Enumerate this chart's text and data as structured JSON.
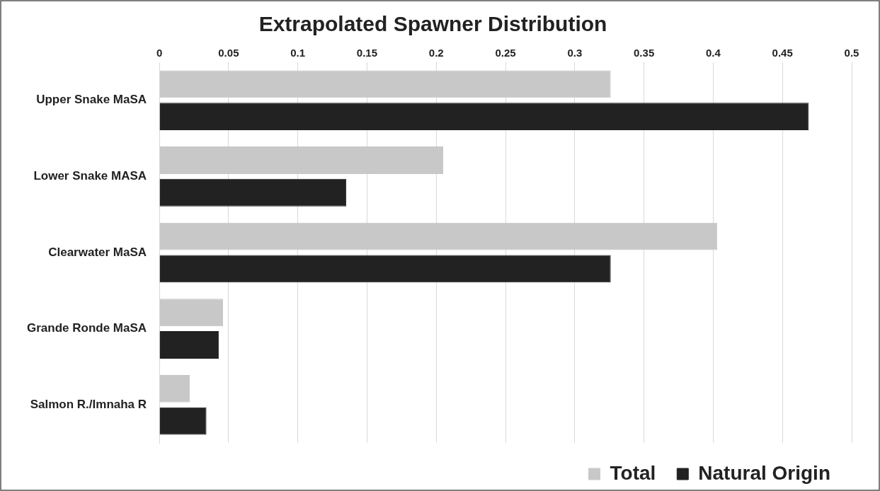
{
  "chart_data": {
    "type": "bar",
    "orientation": "horizontal",
    "title": "Extrapolated Spawner Distribution",
    "categories": [
      "Upper Snake MaSA",
      "Lower Snake MASA",
      "Clearwater MaSA",
      "Grande Ronde MaSA",
      "Salmon R./Imnaha R"
    ],
    "series": [
      {
        "name": "Total",
        "color": "#c8c8c8",
        "values": [
          0.326,
          0.205,
          0.403,
          0.046,
          0.022
        ]
      },
      {
        "name": "Natural Origin",
        "color": "#222222",
        "values": [
          0.469,
          0.135,
          0.326,
          0.043,
          0.034
        ]
      }
    ],
    "xlim": [
      0,
      0.5
    ],
    "xticks": [
      0,
      0.05,
      0.1,
      0.15,
      0.2,
      0.25,
      0.3,
      0.35,
      0.4,
      0.45,
      0.5
    ],
    "grid": "x",
    "legend": "bottom right"
  }
}
